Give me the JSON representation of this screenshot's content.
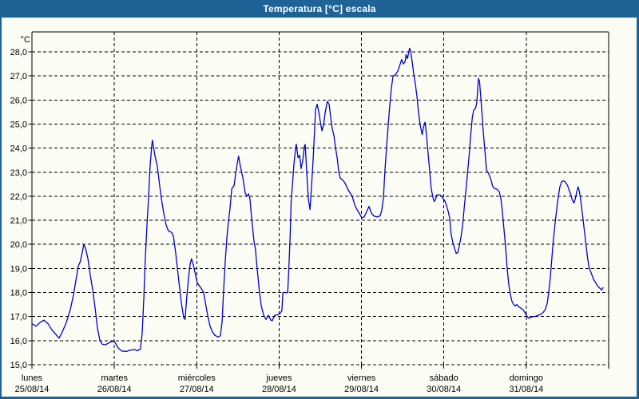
{
  "window": {
    "title": "Temperatura [°C] escala"
  },
  "colors": {
    "titlebar": "#1f6396",
    "window_border": "#1f6396",
    "background": "#fbfdf5",
    "grid": "#000000",
    "axis_text": "#000000",
    "title_text": "#ffffff",
    "line": "#0000cd"
  },
  "chart_data": {
    "type": "line",
    "title": "Temperatura [°C] escala",
    "ylabel": "°C",
    "grid": "dashed",
    "legend": "none",
    "y_axis": {
      "unit_label": "°C",
      "min": 15,
      "max": 28,
      "step": 1,
      "tick_labels": [
        "15,0",
        "16,0",
        "17,0",
        "18,0",
        "19,0",
        "20,0",
        "21,0",
        "22,0",
        "23,0",
        "24,0",
        "25,0",
        "26,0",
        "27,0",
        "28,0"
      ]
    },
    "x_axis": {
      "hours_span": 168,
      "days": [
        {
          "name": "lunes",
          "date": "25/08/14"
        },
        {
          "name": "martes",
          "date": "26/08/14"
        },
        {
          "name": "miércoles",
          "date": "27/08/14"
        },
        {
          "name": "jueves",
          "date": "28/08/14"
        },
        {
          "name": "viernes",
          "date": "29/08/14"
        },
        {
          "name": "sábado",
          "date": "30/08/14"
        },
        {
          "name": "domingo",
          "date": "31/08/14"
        }
      ]
    },
    "series": [
      {
        "name": "Temperatura",
        "color": "#0000cd",
        "points": [
          [
            0,
            16.7
          ],
          [
            1.2,
            16.6
          ],
          [
            2.3,
            16.75
          ],
          [
            3.5,
            16.85
          ],
          [
            4.7,
            16.7
          ],
          [
            5.8,
            16.45
          ],
          [
            7,
            16.25
          ],
          [
            7.9,
            16.1
          ],
          [
            8.8,
            16.35
          ],
          [
            10,
            16.75
          ],
          [
            11.2,
            17.3
          ],
          [
            12.1,
            17.9
          ],
          [
            12.8,
            18.5
          ],
          [
            13.5,
            19.1
          ],
          [
            14,
            19.25
          ],
          [
            14.7,
            19.7
          ],
          [
            15.1,
            20
          ],
          [
            15.6,
            19.85
          ],
          [
            16.3,
            19.4
          ],
          [
            17,
            18.7
          ],
          [
            17.7,
            18.1
          ],
          [
            18.4,
            17.35
          ],
          [
            19.1,
            16.5
          ],
          [
            19.8,
            16
          ],
          [
            20.5,
            15.85
          ],
          [
            21.4,
            15.83
          ],
          [
            22.3,
            15.9
          ],
          [
            23.3,
            15.97
          ],
          [
            24.1,
            15.95
          ],
          [
            25.1,
            15.7
          ],
          [
            26.1,
            15.57
          ],
          [
            27.5,
            15.55
          ],
          [
            28.6,
            15.6
          ],
          [
            29.8,
            15.63
          ],
          [
            30.7,
            15.58
          ],
          [
            31.6,
            15.65
          ],
          [
            32.1,
            16.3
          ],
          [
            32.6,
            17.8
          ],
          [
            33,
            19.3
          ],
          [
            33.5,
            20.8
          ],
          [
            34,
            22
          ],
          [
            34.4,
            23.2
          ],
          [
            34.9,
            24.1
          ],
          [
            35.1,
            24.33
          ],
          [
            35.8,
            23.7
          ],
          [
            36.5,
            23.25
          ],
          [
            37.2,
            22.45
          ],
          [
            37.7,
            21.9
          ],
          [
            38.4,
            21.3
          ],
          [
            39.1,
            20.8
          ],
          [
            39.8,
            20.55
          ],
          [
            40.7,
            20.5
          ],
          [
            41.2,
            20.35
          ],
          [
            41.9,
            19.6
          ],
          [
            42.6,
            18.7
          ],
          [
            43.5,
            17.6
          ],
          [
            44.2,
            16.95
          ],
          [
            44.6,
            16.88
          ],
          [
            45.1,
            17.8
          ],
          [
            45.6,
            18.6
          ],
          [
            46.1,
            19.2
          ],
          [
            46.5,
            19.4
          ],
          [
            47,
            19.15
          ],
          [
            47.7,
            18.7
          ],
          [
            48.2,
            18.4
          ],
          [
            48.9,
            18.25
          ],
          [
            49.6,
            18.1
          ],
          [
            50,
            18
          ],
          [
            50.5,
            17.6
          ],
          [
            51.2,
            17.05
          ],
          [
            51.9,
            16.6
          ],
          [
            52.6,
            16.35
          ],
          [
            53.3,
            16.22
          ],
          [
            54.2,
            16.15
          ],
          [
            54.9,
            16.2
          ],
          [
            55.4,
            16.8
          ],
          [
            55.8,
            18
          ],
          [
            56.3,
            19.3
          ],
          [
            56.8,
            20.3
          ],
          [
            57.2,
            20.9
          ],
          [
            57.7,
            21.5
          ],
          [
            58.2,
            22.3
          ],
          [
            58.9,
            22.45
          ],
          [
            59.4,
            23
          ],
          [
            59.8,
            23.35
          ],
          [
            60.2,
            23.67
          ],
          [
            60.7,
            23.25
          ],
          [
            61.4,
            22.8
          ],
          [
            62.1,
            22.15
          ],
          [
            62.6,
            22
          ],
          [
            63.1,
            22.1
          ],
          [
            63.5,
            21.9
          ],
          [
            64,
            21.1
          ],
          [
            64.7,
            20.1
          ],
          [
            65.1,
            19.8
          ],
          [
            65.6,
            19
          ],
          [
            66.3,
            18
          ],
          [
            66.8,
            17.45
          ],
          [
            67.5,
            17.05
          ],
          [
            68.2,
            16.88
          ],
          [
            68.9,
            17.05
          ],
          [
            69.6,
            16.85
          ],
          [
            70,
            16.83
          ],
          [
            70.7,
            17.05
          ],
          [
            71.7,
            17.08
          ],
          [
            72.4,
            17.15
          ],
          [
            72.8,
            17.25
          ],
          [
            73.1,
            18
          ],
          [
            74.5,
            18
          ],
          [
            74.8,
            18.9
          ],
          [
            75.2,
            20.3
          ],
          [
            75.5,
            21.8
          ],
          [
            75.9,
            22.5
          ],
          [
            76.3,
            23.3
          ],
          [
            76.8,
            24
          ],
          [
            77,
            24.17
          ],
          [
            77.5,
            23.6
          ],
          [
            78,
            23.7
          ],
          [
            78.4,
            23.15
          ],
          [
            78.9,
            23.5
          ],
          [
            79.4,
            24.1
          ],
          [
            79.6,
            24.15
          ],
          [
            80.1,
            22.9
          ],
          [
            80.5,
            21.9
          ],
          [
            81,
            21.45
          ],
          [
            81.4,
            22.3
          ],
          [
            81.9,
            23.5
          ],
          [
            82.4,
            24.9
          ],
          [
            82.6,
            25.6
          ],
          [
            83.1,
            25.82
          ],
          [
            83.5,
            25.55
          ],
          [
            84,
            25.1
          ],
          [
            84.5,
            24.72
          ],
          [
            85,
            25
          ],
          [
            85.4,
            25.45
          ],
          [
            85.9,
            25.85
          ],
          [
            86.1,
            25.94
          ],
          [
            86.6,
            25.8
          ],
          [
            87,
            25.3
          ],
          [
            87.5,
            24.8
          ],
          [
            88,
            24.5
          ],
          [
            88.4,
            24.05
          ],
          [
            88.9,
            23.6
          ],
          [
            89.4,
            23
          ],
          [
            89.8,
            22.75
          ],
          [
            90.5,
            22.68
          ],
          [
            91.2,
            22.55
          ],
          [
            91.9,
            22.33
          ],
          [
            92.6,
            22.15
          ],
          [
            93.3,
            22
          ],
          [
            94,
            21.65
          ],
          [
            94.7,
            21.44
          ],
          [
            95.4,
            21.28
          ],
          [
            96.1,
            21.1
          ],
          [
            96.8,
            21.15
          ],
          [
            97.5,
            21.35
          ],
          [
            98.2,
            21.58
          ],
          [
            98.9,
            21.3
          ],
          [
            99.6,
            21.18
          ],
          [
            100.5,
            21.14
          ],
          [
            101.4,
            21.18
          ],
          [
            101.9,
            21.4
          ],
          [
            102.4,
            21.95
          ],
          [
            102.8,
            23
          ],
          [
            103.3,
            24
          ],
          [
            103.8,
            25
          ],
          [
            104.2,
            25.7
          ],
          [
            104.7,
            26.5
          ],
          [
            105.2,
            27
          ],
          [
            105.9,
            27.05
          ],
          [
            106.6,
            27.2
          ],
          [
            107.3,
            27.5
          ],
          [
            107.7,
            27.68
          ],
          [
            108.2,
            27.5
          ],
          [
            108.7,
            27.6
          ],
          [
            109,
            27.89
          ],
          [
            109.4,
            27.72
          ],
          [
            110,
            28.15
          ],
          [
            110.3,
            28.05
          ],
          [
            110.8,
            27.55
          ],
          [
            111.2,
            27.1
          ],
          [
            111.7,
            26.67
          ],
          [
            112.2,
            26.1
          ],
          [
            112.6,
            25.5
          ],
          [
            113.1,
            24.95
          ],
          [
            113.7,
            24.56
          ],
          [
            114,
            24.83
          ],
          [
            114.5,
            25.08
          ],
          [
            114.9,
            24.6
          ],
          [
            115.4,
            23.8
          ],
          [
            115.9,
            23
          ],
          [
            116.3,
            22.33
          ],
          [
            116.8,
            21.95
          ],
          [
            117.2,
            21.78
          ],
          [
            117.5,
            21.85
          ],
          [
            118,
            22.06
          ],
          [
            118.9,
            22.05
          ],
          [
            119.6,
            21.95
          ],
          [
            120.3,
            21.8
          ],
          [
            120.7,
            21.65
          ],
          [
            121.2,
            21.4
          ],
          [
            121.7,
            21.1
          ],
          [
            122.1,
            20.45
          ],
          [
            122.6,
            20.08
          ],
          [
            123.1,
            19.85
          ],
          [
            123.6,
            19.62
          ],
          [
            124.1,
            19.67
          ],
          [
            124.5,
            19.95
          ],
          [
            125,
            20.32
          ],
          [
            125.5,
            20.85
          ],
          [
            125.9,
            21.5
          ],
          [
            126.4,
            22.2
          ],
          [
            126.9,
            23
          ],
          [
            127.3,
            23.6
          ],
          [
            127.8,
            24.5
          ],
          [
            128.3,
            25.3
          ],
          [
            128.7,
            25.58
          ],
          [
            129.2,
            25.65
          ],
          [
            129.6,
            25.9
          ],
          [
            129.9,
            26.6
          ],
          [
            130.1,
            26.9
          ],
          [
            130.4,
            26.75
          ],
          [
            130.7,
            26.2
          ],
          [
            131.1,
            25.45
          ],
          [
            131.5,
            24.65
          ],
          [
            132,
            23.8
          ],
          [
            132.4,
            23.1
          ],
          [
            132.9,
            22.98
          ],
          [
            133.3,
            22.85
          ],
          [
            133.8,
            22.65
          ],
          [
            134.2,
            22.42
          ],
          [
            134.7,
            22.32
          ],
          [
            135.4,
            22.3
          ],
          [
            136.1,
            22.2
          ],
          [
            136.6,
            21.9
          ],
          [
            137,
            21.4
          ],
          [
            137.5,
            20.65
          ],
          [
            138,
            19.85
          ],
          [
            138.4,
            19.05
          ],
          [
            138.9,
            18.35
          ],
          [
            139.4,
            17.9
          ],
          [
            139.8,
            17.65
          ],
          [
            140.3,
            17.5
          ],
          [
            140.8,
            17.44
          ],
          [
            141.2,
            17.5
          ],
          [
            141.7,
            17.42
          ],
          [
            142.4,
            17.35
          ],
          [
            143.1,
            17.28
          ],
          [
            143.8,
            17.12
          ],
          [
            144.3,
            17
          ],
          [
            144.7,
            16.93
          ],
          [
            145.2,
            16.95
          ],
          [
            145.7,
            17
          ],
          [
            146.4,
            17
          ],
          [
            147.1,
            17.03
          ],
          [
            148,
            17.08
          ],
          [
            148.9,
            17.17
          ],
          [
            149.6,
            17.3
          ],
          [
            150.1,
            17.56
          ],
          [
            150.5,
            17.95
          ],
          [
            151,
            18.6
          ],
          [
            151.5,
            19.5
          ],
          [
            151.9,
            20.2
          ],
          [
            152.4,
            20.89
          ],
          [
            152.9,
            21.5
          ],
          [
            153.3,
            21.95
          ],
          [
            153.8,
            22.4
          ],
          [
            154.3,
            22.6
          ],
          [
            154.7,
            22.64
          ],
          [
            155.2,
            22.62
          ],
          [
            155.6,
            22.55
          ],
          [
            156.1,
            22.42
          ],
          [
            156.5,
            22.25
          ],
          [
            157,
            22.06
          ],
          [
            157.4,
            21.85
          ],
          [
            157.9,
            21.72
          ],
          [
            158.3,
            21.9
          ],
          [
            158.8,
            22.25
          ],
          [
            159.1,
            22.39
          ],
          [
            159.5,
            22.18
          ],
          [
            159.9,
            21.8
          ],
          [
            160.4,
            21.22
          ],
          [
            160.9,
            20.6
          ],
          [
            161.3,
            20.1
          ],
          [
            161.8,
            19.5
          ],
          [
            162.2,
            19.1
          ],
          [
            162.7,
            18.89
          ],
          [
            163.2,
            18.7
          ],
          [
            163.6,
            18.55
          ],
          [
            164.1,
            18.44
          ],
          [
            164.5,
            18.33
          ],
          [
            165,
            18.24
          ],
          [
            165.5,
            18.17
          ],
          [
            165.9,
            18.1
          ],
          [
            166.4,
            18.2
          ]
        ]
      }
    ]
  }
}
